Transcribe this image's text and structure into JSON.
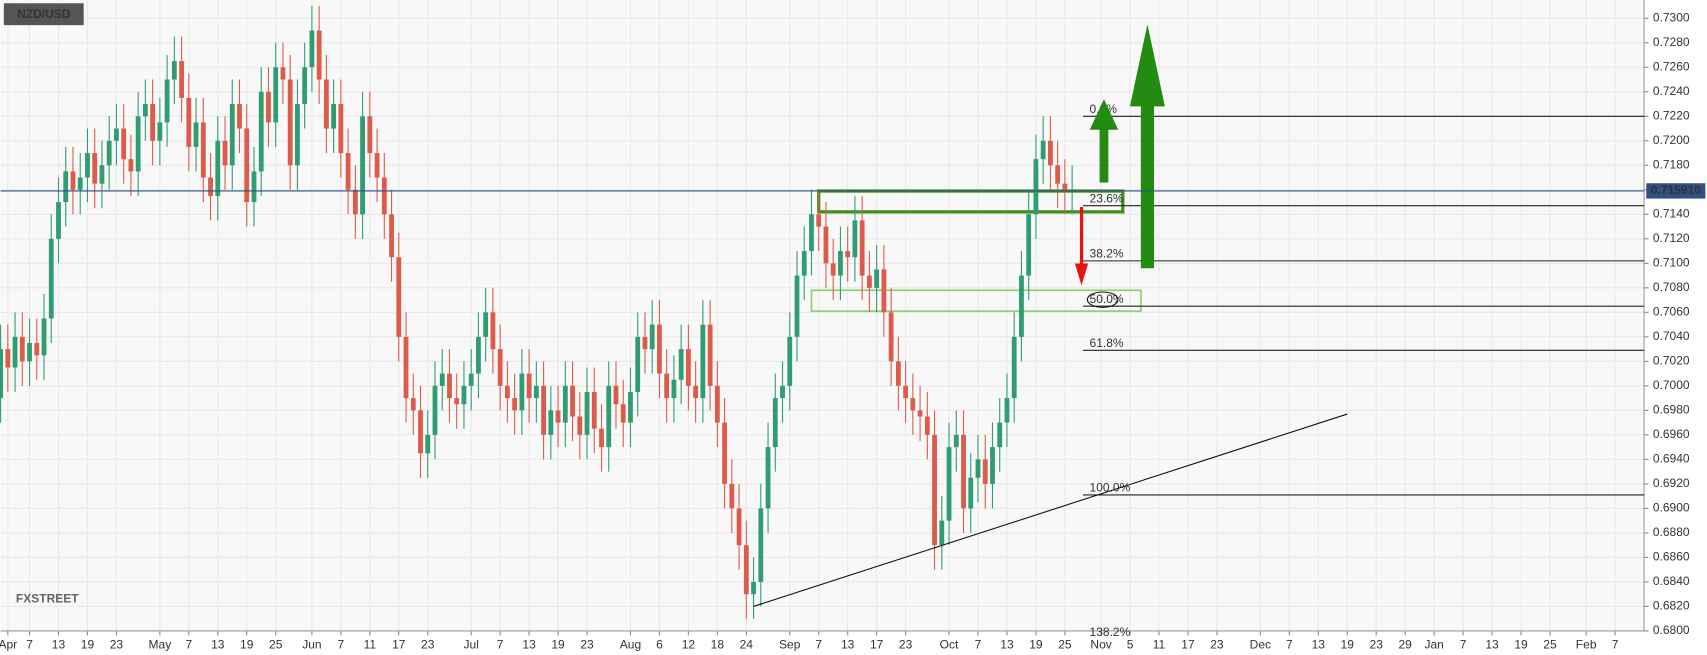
{
  "chart_data": {
    "type": "candlestick",
    "title": "NZD/USD",
    "watermark": "FXSTREET",
    "up_color": "#2f9c73",
    "down_color": "#dc5b4b",
    "grid": true,
    "xlim": [
      0,
      227
    ],
    "ylim": [
      0.68,
      0.7314
    ],
    "open": [
      0.699,
      0.703,
      0.7015,
      0.704,
      0.702,
      0.7035,
      0.7025,
      0.7055,
      0.712,
      0.715,
      0.7175,
      0.716,
      0.717,
      0.719,
      0.7165,
      0.718,
      0.72,
      0.721,
      0.7185,
      0.7175,
      0.722,
      0.723,
      0.72,
      0.7215,
      0.725,
      0.7265,
      0.7235,
      0.7195,
      0.7215,
      0.717,
      0.7155,
      0.72,
      0.718,
      0.723,
      0.721,
      0.715,
      0.7175,
      0.724,
      0.7215,
      0.726,
      0.725,
      0.718,
      0.723,
      0.726,
      0.729,
      0.725,
      0.721,
      0.723,
      0.719,
      0.716,
      0.714,
      0.722,
      0.719,
      0.717,
      0.714,
      0.7105,
      0.704,
      0.699,
      0.698,
      0.6945,
      0.696,
      0.7,
      0.701,
      0.699,
      0.6985,
      0.7,
      0.701,
      0.704,
      0.706,
      0.703,
      0.7,
      0.699,
      0.698,
      0.701,
      0.699,
      0.7,
      0.696,
      0.698,
      0.697,
      0.7,
      0.6975,
      0.696,
      0.6995,
      0.6965,
      0.695,
      0.7,
      0.6985,
      0.697,
      0.6995,
      0.704,
      0.703,
      0.705,
      0.701,
      0.699,
      0.7005,
      0.703,
      0.7,
      0.699,
      0.705,
      0.7,
      0.697,
      0.692,
      0.69,
      0.687,
      0.683,
      0.684,
      0.69,
      0.695,
      0.699,
      0.7,
      0.704,
      0.709,
      0.711,
      0.714,
      0.713,
      0.71,
      0.709,
      0.711,
      0.7105,
      0.7135,
      0.709,
      0.708,
      0.7095,
      0.706,
      0.702,
      0.7,
      0.699,
      0.698,
      0.6975,
      0.696,
      0.687,
      0.689,
      0.695,
      0.696,
      0.69,
      0.6925,
      0.694,
      0.692,
      0.695,
      0.697,
      0.699,
      0.704,
      0.709,
      0.714,
      0.7185,
      0.72,
      0.718,
      0.7165,
      0.716
    ],
    "high": [
      0.705,
      0.705,
      0.706,
      0.706,
      0.7055,
      0.7055,
      0.7075,
      0.714,
      0.717,
      0.7195,
      0.7195,
      0.719,
      0.721,
      0.721,
      0.72,
      0.722,
      0.723,
      0.723,
      0.7205,
      0.724,
      0.725,
      0.725,
      0.7235,
      0.727,
      0.7285,
      0.7285,
      0.7255,
      0.7235,
      0.7235,
      0.719,
      0.722,
      0.722,
      0.725,
      0.725,
      0.723,
      0.7195,
      0.726,
      0.726,
      0.728,
      0.728,
      0.727,
      0.725,
      0.728,
      0.731,
      0.731,
      0.727,
      0.725,
      0.725,
      0.721,
      0.718,
      0.724,
      0.724,
      0.721,
      0.719,
      0.716,
      0.7125,
      0.706,
      0.701,
      0.7,
      0.698,
      0.702,
      0.703,
      0.703,
      0.701,
      0.702,
      0.703,
      0.706,
      0.708,
      0.708,
      0.705,
      0.702,
      0.701,
      0.703,
      0.703,
      0.702,
      0.702,
      0.7,
      0.7,
      0.702,
      0.702,
      0.6995,
      0.7015,
      0.7015,
      0.6985,
      0.702,
      0.702,
      0.7005,
      0.7015,
      0.706,
      0.706,
      0.707,
      0.707,
      0.703,
      0.7025,
      0.705,
      0.705,
      0.702,
      0.707,
      0.707,
      0.702,
      0.699,
      0.694,
      0.692,
      0.689,
      0.686,
      0.692,
      0.697,
      0.701,
      0.702,
      0.706,
      0.711,
      0.713,
      0.716,
      0.716,
      0.715,
      0.712,
      0.713,
      0.713,
      0.7155,
      0.7155,
      0.711,
      0.7115,
      0.7115,
      0.708,
      0.704,
      0.702,
      0.701,
      0.7,
      0.6995,
      0.698,
      0.691,
      0.697,
      0.698,
      0.698,
      0.6945,
      0.696,
      0.696,
      0.697,
      0.699,
      0.701,
      0.706,
      0.711,
      0.716,
      0.7205,
      0.722,
      0.722,
      0.72,
      0.7185,
      0.718
    ],
    "low": [
      0.697,
      0.6995,
      0.6995,
      0.7,
      0.7,
      0.7005,
      0.7005,
      0.7035,
      0.71,
      0.713,
      0.714,
      0.714,
      0.715,
      0.7145,
      0.7145,
      0.716,
      0.718,
      0.7165,
      0.7155,
      0.7155,
      0.72,
      0.718,
      0.718,
      0.7195,
      0.723,
      0.7215,
      0.7175,
      0.7175,
      0.715,
      0.7135,
      0.7135,
      0.716,
      0.716,
      0.719,
      0.713,
      0.713,
      0.7155,
      0.7195,
      0.7195,
      0.723,
      0.716,
      0.716,
      0.721,
      0.724,
      0.723,
      0.719,
      0.719,
      0.717,
      0.714,
      0.712,
      0.712,
      0.717,
      0.715,
      0.712,
      0.7085,
      0.702,
      0.697,
      0.696,
      0.6925,
      0.6925,
      0.694,
      0.698,
      0.697,
      0.6965,
      0.6965,
      0.698,
      0.699,
      0.702,
      0.701,
      0.698,
      0.697,
      0.696,
      0.696,
      0.697,
      0.697,
      0.694,
      0.694,
      0.695,
      0.695,
      0.6955,
      0.694,
      0.694,
      0.6945,
      0.693,
      0.693,
      0.6965,
      0.695,
      0.695,
      0.6975,
      0.701,
      0.701,
      0.699,
      0.697,
      0.697,
      0.6985,
      0.698,
      0.697,
      0.697,
      0.698,
      0.695,
      0.69,
      0.688,
      0.685,
      0.681,
      0.681,
      0.682,
      0.688,
      0.693,
      0.697,
      0.698,
      0.702,
      0.707,
      0.709,
      0.711,
      0.708,
      0.707,
      0.707,
      0.7085,
      0.7085,
      0.707,
      0.706,
      0.706,
      0.704,
      0.7,
      0.698,
      0.697,
      0.696,
      0.6955,
      0.694,
      0.685,
      0.685,
      0.687,
      0.693,
      0.688,
      0.688,
      0.6905,
      0.69,
      0.69,
      0.693,
      0.695,
      0.697,
      0.702,
      0.707,
      0.712,
      0.7165,
      0.716,
      0.7145,
      0.714,
      0.714
    ],
    "close": [
      0.703,
      0.7015,
      0.704,
      0.702,
      0.7035,
      0.7025,
      0.7055,
      0.712,
      0.715,
      0.7175,
      0.716,
      0.717,
      0.719,
      0.7165,
      0.718,
      0.72,
      0.721,
      0.7185,
      0.7175,
      0.722,
      0.723,
      0.72,
      0.7215,
      0.725,
      0.7265,
      0.7235,
      0.7195,
      0.7215,
      0.717,
      0.7155,
      0.72,
      0.718,
      0.723,
      0.721,
      0.715,
      0.7175,
      0.724,
      0.7215,
      0.726,
      0.725,
      0.718,
      0.723,
      0.726,
      0.729,
      0.725,
      0.721,
      0.723,
      0.719,
      0.716,
      0.714,
      0.722,
      0.719,
      0.717,
      0.714,
      0.7105,
      0.704,
      0.699,
      0.698,
      0.6945,
      0.696,
      0.7,
      0.701,
      0.699,
      0.6985,
      0.7,
      0.701,
      0.704,
      0.706,
      0.703,
      0.7,
      0.699,
      0.698,
      0.701,
      0.699,
      0.7,
      0.696,
      0.698,
      0.697,
      0.7,
      0.6975,
      0.696,
      0.6995,
      0.6965,
      0.695,
      0.7,
      0.6985,
      0.697,
      0.6995,
      0.704,
      0.703,
      0.705,
      0.701,
      0.699,
      0.7005,
      0.703,
      0.7,
      0.699,
      0.705,
      0.7,
      0.697,
      0.692,
      0.69,
      0.687,
      0.683,
      0.684,
      0.69,
      0.695,
      0.699,
      0.7,
      0.704,
      0.709,
      0.711,
      0.714,
      0.713,
      0.71,
      0.709,
      0.711,
      0.7105,
      0.7135,
      0.709,
      0.708,
      0.7095,
      0.706,
      0.702,
      0.7,
      0.699,
      0.698,
      0.6975,
      0.696,
      0.687,
      0.689,
      0.695,
      0.696,
      0.69,
      0.6925,
      0.694,
      0.692,
      0.695,
      0.697,
      0.699,
      0.704,
      0.709,
      0.714,
      0.7185,
      0.72,
      0.718,
      0.7165,
      0.716,
      0.716
    ],
    "xticks": [
      {
        "value": 1,
        "label": "Apr"
      },
      {
        "value": 4,
        "label": "7"
      },
      {
        "value": 8,
        "label": "13"
      },
      {
        "value": 12,
        "label": "19"
      },
      {
        "value": 16,
        "label": "23"
      },
      {
        "value": 22,
        "label": "May"
      },
      {
        "value": 26,
        "label": "7"
      },
      {
        "value": 30,
        "label": "13"
      },
      {
        "value": 34,
        "label": "19"
      },
      {
        "value": 38,
        "label": "25"
      },
      {
        "value": 43,
        "label": "Jun"
      },
      {
        "value": 47,
        "label": "7"
      },
      {
        "value": 51,
        "label": "11"
      },
      {
        "value": 55,
        "label": "17"
      },
      {
        "value": 59,
        "label": "23"
      },
      {
        "value": 65,
        "label": "Jul"
      },
      {
        "value": 69,
        "label": "7"
      },
      {
        "value": 73,
        "label": "13"
      },
      {
        "value": 77,
        "label": "19"
      },
      {
        "value": 81,
        "label": "23"
      },
      {
        "value": 87,
        "label": "Aug"
      },
      {
        "value": 91,
        "label": "6"
      },
      {
        "value": 95,
        "label": "12"
      },
      {
        "value": 99,
        "label": "18"
      },
      {
        "value": 103,
        "label": "24"
      },
      {
        "value": 109,
        "label": "Sep"
      },
      {
        "value": 113,
        "label": "7"
      },
      {
        "value": 117,
        "label": "13"
      },
      {
        "value": 121,
        "label": "17"
      },
      {
        "value": 125,
        "label": "23"
      },
      {
        "value": 131,
        "label": "Oct"
      },
      {
        "value": 135,
        "label": "7"
      },
      {
        "value": 139,
        "label": "13"
      },
      {
        "value": 143,
        "label": "19"
      },
      {
        "value": 147,
        "label": "25"
      },
      {
        "value": 152,
        "label": "Nov"
      },
      {
        "value": 156,
        "label": "5"
      },
      {
        "value": 160,
        "label": "11"
      },
      {
        "value": 164,
        "label": "17"
      },
      {
        "value": 168,
        "label": "23"
      },
      {
        "value": 174,
        "label": "Dec"
      },
      {
        "value": 178,
        "label": "7"
      },
      {
        "value": 182,
        "label": "13"
      },
      {
        "value": 186,
        "label": "19"
      },
      {
        "value": 190,
        "label": "23"
      },
      {
        "value": 194,
        "label": "29"
      },
      {
        "value": 198,
        "label": "Jan"
      },
      {
        "value": 202,
        "label": "7"
      },
      {
        "value": 206,
        "label": "13"
      },
      {
        "value": 210,
        "label": "19"
      },
      {
        "value": 214,
        "label": "25"
      },
      {
        "value": 219,
        "label": "Feb"
      },
      {
        "value": 223,
        "label": "7"
      }
    ],
    "yticks": [
      {
        "value": 0.68,
        "label": "0.6800"
      },
      {
        "value": 0.682,
        "label": "0.6820"
      },
      {
        "value": 0.684,
        "label": "0.6840"
      },
      {
        "value": 0.686,
        "label": "0.6860"
      },
      {
        "value": 0.688,
        "label": "0.6880"
      },
      {
        "value": 0.69,
        "label": "0.6900"
      },
      {
        "value": 0.692,
        "label": "0.6920"
      },
      {
        "value": 0.694,
        "label": "0.6940"
      },
      {
        "value": 0.696,
        "label": "0.6960"
      },
      {
        "value": 0.698,
        "label": "0.6980"
      },
      {
        "value": 0.7,
        "label": "0.7000"
      },
      {
        "value": 0.702,
        "label": "0.7020"
      },
      {
        "value": 0.704,
        "label": "0.7040"
      },
      {
        "value": 0.706,
        "label": "0.7060"
      },
      {
        "value": 0.708,
        "label": "0.7080"
      },
      {
        "value": 0.71,
        "label": "0.7100"
      },
      {
        "value": 0.712,
        "label": "0.7120"
      },
      {
        "value": 0.714,
        "label": "0.7140"
      },
      {
        "value": 0.716,
        "label": "0.7160"
      },
      {
        "value": 0.718,
        "label": "0.7180"
      },
      {
        "value": 0.72,
        "label": "0.7200"
      },
      {
        "value": 0.722,
        "label": "0.7220"
      },
      {
        "value": 0.724,
        "label": "0.7240"
      },
      {
        "value": 0.726,
        "label": "0.7260"
      },
      {
        "value": 0.728,
        "label": "0.7280"
      },
      {
        "value": 0.73,
        "label": "0.7300"
      }
    ],
    "last_price": {
      "value": 0.71591,
      "label": "0.715910",
      "color": "#2f4f85"
    },
    "fib_start": 149.5,
    "fib_levels": [
      {
        "label": "0.0%",
        "value": 0.722
      },
      {
        "label": "23.6%",
        "value": 0.7147
      },
      {
        "label": "38.2%",
        "value": 0.7102
      },
      {
        "label": "50.0%",
        "value": 0.7065
      },
      {
        "label": "61.8%",
        "value": 0.7029
      },
      {
        "label": "100.0%",
        "value": 0.6911
      },
      {
        "label": "138.2%",
        "value": 0.6793
      }
    ],
    "trendline": {
      "x": [
        104,
        186
      ],
      "y": [
        0.682,
        0.6977
      ]
    },
    "zones": [
      {
        "x": [
          113,
          155
        ],
        "y": [
          0.7142,
          0.7159
        ],
        "color": "#3f8f1f"
      },
      {
        "x": [
          112,
          157.5
        ],
        "y": [
          0.7061,
          0.7078
        ],
        "color": "#8ccf6a"
      }
    ],
    "arrows": [
      {
        "x": 149.3,
        "y": [
          0.7146,
          0.7082
        ],
        "color": "#e8130f"
      },
      {
        "x": 152.4,
        "y": [
          0.7166,
          0.7234
        ],
        "color": "#238a12"
      },
      {
        "x": 158.4,
        "y": [
          0.7096,
          0.7295
        ],
        "color": "#238a12"
      }
    ]
  }
}
